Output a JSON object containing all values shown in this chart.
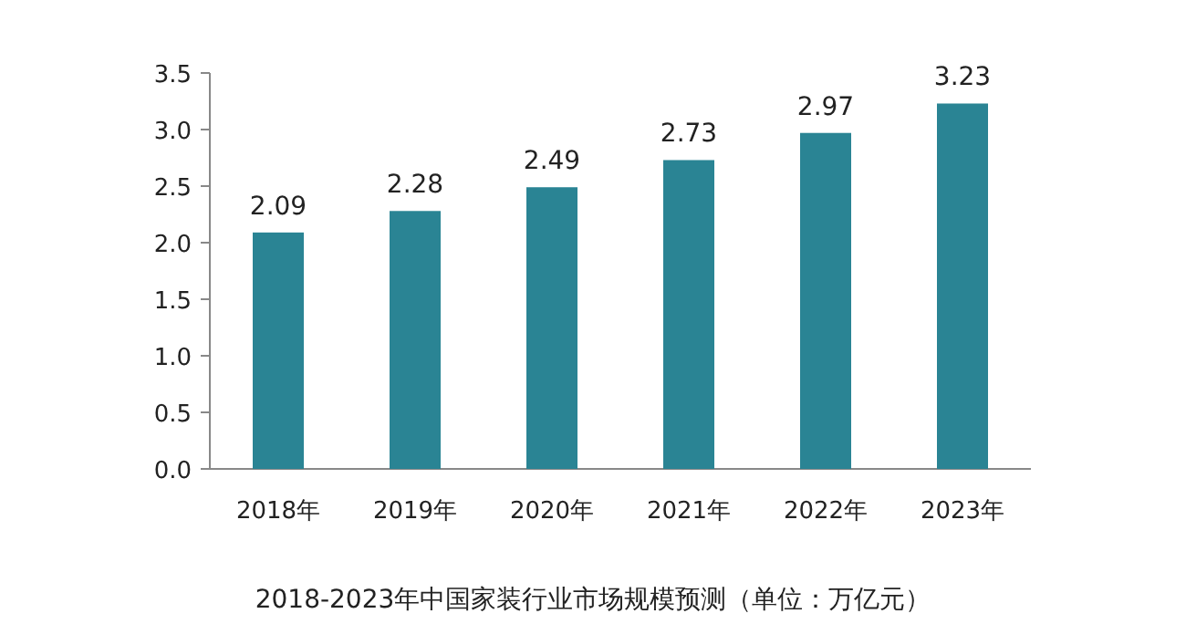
{
  "chart_data": {
    "type": "bar",
    "title": "2018-2023年中国家装行业市场规模预测（单位：万亿元）",
    "categories": [
      "2018年",
      "2019年",
      "2020年",
      "2021年",
      "2022年",
      "2023年"
    ],
    "values": [
      2.09,
      2.28,
      2.49,
      2.73,
      2.97,
      3.23
    ],
    "color": "#2a8494",
    "ylim": [
      0,
      3.5
    ],
    "yticks": [
      {
        "value": 0,
        "label": "0.0"
      },
      {
        "value": 0.5,
        "label": "0.5"
      },
      {
        "value": 1,
        "label": "1.0"
      },
      {
        "value": 1.5,
        "label": "1.5"
      },
      {
        "value": 2,
        "label": "2.0"
      },
      {
        "value": 2.5,
        "label": "2.5"
      },
      {
        "value": 3,
        "label": "3.0"
      },
      {
        "value": 3.5,
        "label": "3.5"
      }
    ],
    "data_labels": true
  }
}
